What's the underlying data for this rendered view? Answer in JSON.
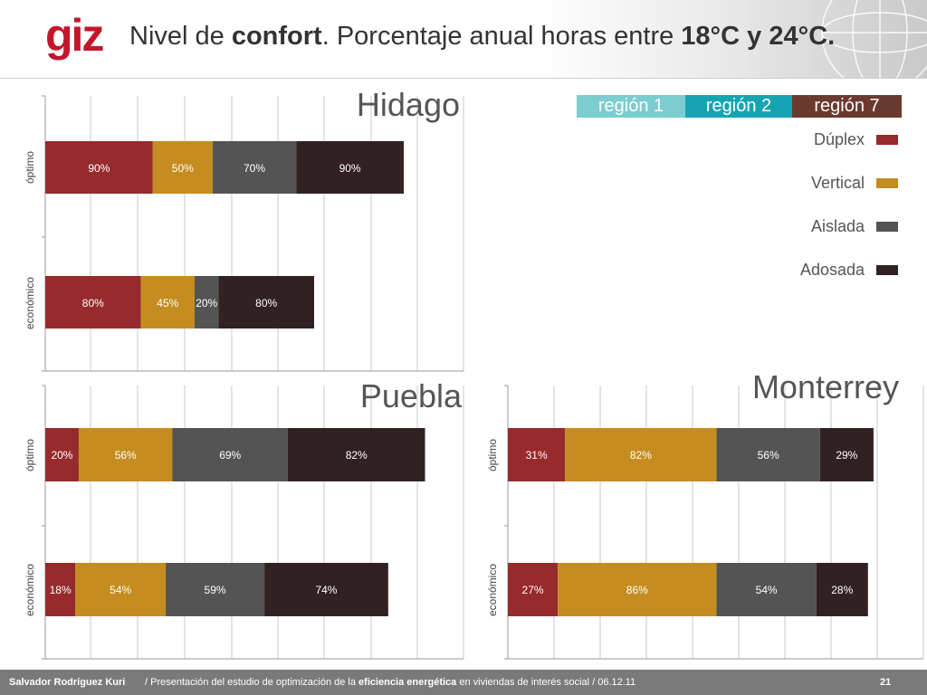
{
  "header": {
    "logo": "giz",
    "title_parts": [
      "Nivel de ",
      "confort",
      ". Porcentaje anual horas entre ",
      "18°C y 24°C."
    ]
  },
  "regions": [
    {
      "label": "región 1",
      "color": "#7ccdd0"
    },
    {
      "label": "región 2",
      "color": "#17a4b2"
    },
    {
      "label": "región 7",
      "color": "#6b3a2e"
    }
  ],
  "legend": [
    {
      "label": "Dúplex",
      "color": "#962a2c"
    },
    {
      "label": "Vertical",
      "color": "#c58d20"
    },
    {
      "label": "Aislada",
      "color": "#545454"
    },
    {
      "label": "Adosada",
      "color": "#322122"
    }
  ],
  "chart_data": [
    {
      "type": "bar",
      "orientation": "horizontal",
      "stacked": true,
      "title": "Hidago",
      "categories": [
        "óptimo",
        "económico"
      ],
      "series": [
        {
          "name": "Dúplex",
          "values": [
            90,
            80
          ],
          "labels": [
            "90%",
            "80%"
          ]
        },
        {
          "name": "Vertical",
          "values": [
            50,
            45
          ],
          "labels": [
            "50%",
            "45%"
          ]
        },
        {
          "name": "Aislada",
          "values": [
            70,
            20
          ],
          "labels": [
            "70%",
            "20%"
          ]
        },
        {
          "name": "Adosada",
          "values": [
            90,
            80
          ],
          "labels": [
            "90%",
            "80%"
          ]
        }
      ],
      "xlim": [
        0,
        350
      ],
      "grid": true
    },
    {
      "type": "bar",
      "orientation": "horizontal",
      "stacked": true,
      "title": "Puebla",
      "categories": [
        "óptimo",
        "económico"
      ],
      "series": [
        {
          "name": "Dúplex",
          "values": [
            20,
            18
          ],
          "labels": [
            "20%",
            "18%"
          ]
        },
        {
          "name": "Vertical",
          "values": [
            56,
            54
          ],
          "labels": [
            "56%",
            "54%"
          ]
        },
        {
          "name": "Aislada",
          "values": [
            69,
            59
          ],
          "labels": [
            "69%",
            "59%"
          ]
        },
        {
          "name": "Adosada",
          "values": [
            82,
            74
          ],
          "labels": [
            "82%",
            "74%"
          ]
        }
      ],
      "xlim": [
        0,
        250
      ],
      "grid": true
    },
    {
      "type": "bar",
      "orientation": "horizontal",
      "stacked": true,
      "title": "Monterrey",
      "categories": [
        "óptimo",
        "económico"
      ],
      "series": [
        {
          "name": "Dúplex",
          "values": [
            31,
            27
          ],
          "labels": [
            "31%",
            "27%"
          ]
        },
        {
          "name": "Vertical",
          "values": [
            82,
            86
          ],
          "labels": [
            "82%",
            "86%"
          ]
        },
        {
          "name": "Aislada",
          "values": [
            56,
            54
          ],
          "labels": [
            "56%",
            "54%"
          ]
        },
        {
          "name": "Adosada",
          "values": [
            29,
            28
          ],
          "labels": [
            "29%",
            "28%"
          ]
        }
      ],
      "xlim": [
        0,
        225
      ],
      "grid": true
    }
  ],
  "footer": {
    "author": "Salvador Rodríguez Kuri",
    "desc_pre": "/ Presentación del estudio de optimización de la ",
    "desc_bold": "eficiencia energética",
    "desc_post": " en viviendas de interés social  /  06.12.11",
    "page": "21"
  }
}
